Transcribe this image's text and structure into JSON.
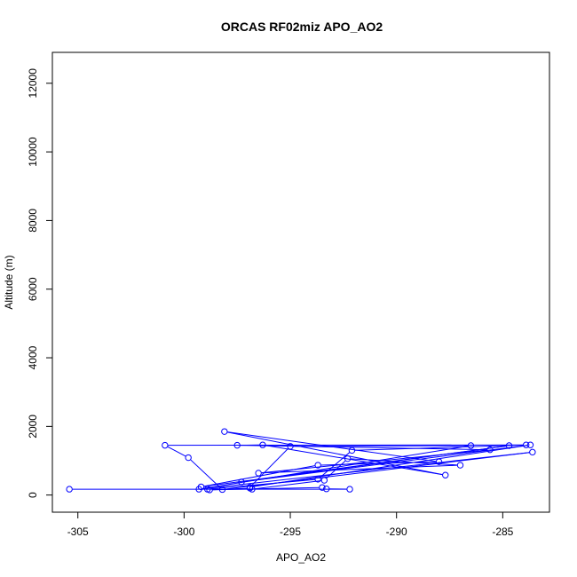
{
  "chart_data": {
    "type": "line",
    "title": "ORCAS RF02miz APO_AO2",
    "xlabel": "APO_AO2",
    "ylabel": "Altitude (m)",
    "xlim": [
      -306.2,
      -282.8
    ],
    "ylim": [
      -500,
      12900
    ],
    "x_ticks": [
      -305,
      -300,
      -295,
      -290,
      -285
    ],
    "x_tick_labels": [
      "-305",
      "-300",
      "-295",
      "-290",
      "-285"
    ],
    "y_ticks": [
      0,
      2000,
      4000,
      6000,
      8000,
      10000,
      12000
    ],
    "y_tick_labels": [
      "0",
      "2000",
      "4000",
      "6000",
      "8000",
      "10000",
      "12000"
    ],
    "grid": false,
    "legend": "none",
    "series": [
      {
        "color": "#0000ff",
        "marker": "open-circle",
        "points": [
          [
            -305.4,
            170
          ],
          [
            -292.2,
            170
          ],
          [
            -293.3,
            180
          ],
          [
            -293.5,
            220
          ],
          [
            -298.8,
            150
          ],
          [
            -296.9,
            200
          ],
          [
            -296.8,
            170
          ],
          [
            -293.4,
            430
          ],
          [
            -292.3,
            1060
          ],
          [
            -287.0,
            870
          ],
          [
            -296.5,
            640
          ],
          [
            -285.6,
            1320
          ],
          [
            -297.5,
            1450
          ],
          [
            -296.3,
            1460
          ],
          [
            -287.7,
            580
          ],
          [
            -298.1,
            1850
          ],
          [
            -288.0,
            970
          ],
          [
            -293.7,
            870
          ],
          [
            -299.2,
            240
          ],
          [
            -284.7,
            1440
          ],
          [
            -297.3,
            380
          ],
          [
            -283.7,
            1460
          ],
          [
            -296.9,
            230
          ],
          [
            -295.0,
            1420
          ],
          [
            -286.5,
            1440
          ],
          [
            -299.3,
            170
          ],
          [
            -283.6,
            1250
          ],
          [
            -298.2,
            160
          ],
          [
            -299.8,
            1090
          ],
          [
            -300.9,
            1450
          ],
          [
            -283.9,
            1460
          ],
          [
            -292.1,
            1300
          ],
          [
            -293.7,
            460
          ],
          [
            -298.9,
            170
          ]
        ]
      }
    ]
  }
}
